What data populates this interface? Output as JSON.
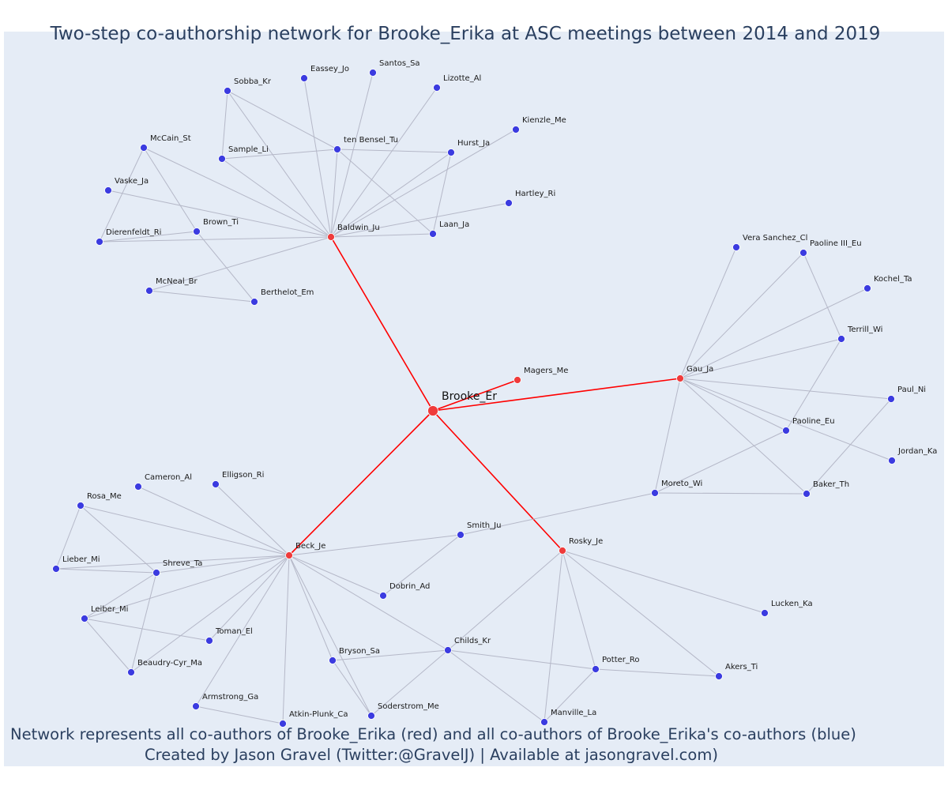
{
  "title": "Two-step co-authorship network for Brooke_Erika at ASC meetings between 2014 and 2019",
  "footer": {
    "line1": "Network represents all co-authors of Brooke_Erika (red) and all co-authors of Brooke_Erika's co-authors (blue)",
    "line2": "Created by Jason Gravel (Twitter:@GravelJ) | Available at jasongravel.com)"
  },
  "colors": {
    "background": "#e5ecf6",
    "text": "#2a3f5f",
    "first_degree": "#ef3b3b",
    "second_degree": "#3b3be0",
    "first_degree_edge": "#ff0000",
    "second_degree_edge": "#b5b8c8"
  },
  "center_node": "Brooke_Er",
  "nodes": [
    {
      "id": "Brooke_Er",
      "type": "center"
    },
    {
      "id": "Baldwin_Ju",
      "type": "first"
    },
    {
      "id": "Magers_Me",
      "type": "first"
    },
    {
      "id": "Gau_Ja",
      "type": "first"
    },
    {
      "id": "Beck_Je",
      "type": "first"
    },
    {
      "id": "Rosky_Je",
      "type": "first"
    },
    {
      "id": "Sobba_Kr",
      "type": "second"
    },
    {
      "id": "Eassey_Jo",
      "type": "second"
    },
    {
      "id": "Santos_Sa",
      "type": "second"
    },
    {
      "id": "Lizotte_Al",
      "type": "second"
    },
    {
      "id": "Kienzle_Me",
      "type": "second"
    },
    {
      "id": "McCain_St",
      "type": "second"
    },
    {
      "id": "ten Bensel_Tu",
      "type": "second"
    },
    {
      "id": "Hurst_Ja",
      "type": "second"
    },
    {
      "id": "Sample_Li",
      "type": "second"
    },
    {
      "id": "Vaske_Ja",
      "type": "second"
    },
    {
      "id": "Hartley_Ri",
      "type": "second"
    },
    {
      "id": "Brown_Ti",
      "type": "second"
    },
    {
      "id": "Dierenfeldt_Ri",
      "type": "second"
    },
    {
      "id": "Laan_Ja",
      "type": "second"
    },
    {
      "id": "McNeal_Br",
      "type": "second"
    },
    {
      "id": "Berthelot_Em",
      "type": "second"
    },
    {
      "id": "Vera Sanchez_Cl",
      "type": "second"
    },
    {
      "id": "Paoline III_Eu",
      "type": "second"
    },
    {
      "id": "Kochel_Ta",
      "type": "second"
    },
    {
      "id": "Terrill_Wi",
      "type": "second"
    },
    {
      "id": "Paul_Ni",
      "type": "second"
    },
    {
      "id": "Paoline_Eu",
      "type": "second"
    },
    {
      "id": "Jordan_Ka",
      "type": "second"
    },
    {
      "id": "Moreto_Wi",
      "type": "second"
    },
    {
      "id": "Baker_Th",
      "type": "second"
    },
    {
      "id": "Cameron_Al",
      "type": "second"
    },
    {
      "id": "Elligson_Ri",
      "type": "second"
    },
    {
      "id": "Rosa_Me",
      "type": "second"
    },
    {
      "id": "Smith_Ju",
      "type": "second"
    },
    {
      "id": "Lieber_Mi",
      "type": "second"
    },
    {
      "id": "Shreve_Ta",
      "type": "second"
    },
    {
      "id": "Dobrin_Ad",
      "type": "second"
    },
    {
      "id": "Lucken_Ka",
      "type": "second"
    },
    {
      "id": "Leiber_Mi",
      "type": "second"
    },
    {
      "id": "Toman_El",
      "type": "second"
    },
    {
      "id": "Childs_Kr",
      "type": "second"
    },
    {
      "id": "Bryson_Sa",
      "type": "second"
    },
    {
      "id": "Potter_Ro",
      "type": "second"
    },
    {
      "id": "Akers_Ti",
      "type": "second"
    },
    {
      "id": "Beaudry-Cyr_Ma",
      "type": "second"
    },
    {
      "id": "Armstrong_Ga",
      "type": "second"
    },
    {
      "id": "Soderstrom_Me",
      "type": "second"
    },
    {
      "id": "Manville_La",
      "type": "second"
    },
    {
      "id": "Atkin-Plunk_Ca",
      "type": "second"
    }
  ],
  "edges": [
    [
      "Brooke_Er",
      "Baldwin_Ju"
    ],
    [
      "Brooke_Er",
      "Magers_Me"
    ],
    [
      "Brooke_Er",
      "Gau_Ja"
    ],
    [
      "Brooke_Er",
      "Beck_Je"
    ],
    [
      "Brooke_Er",
      "Rosky_Je"
    ],
    [
      "Baldwin_Ju",
      "Sobba_Kr"
    ],
    [
      "Baldwin_Ju",
      "Eassey_Jo"
    ],
    [
      "Baldwin_Ju",
      "Santos_Sa"
    ],
    [
      "Baldwin_Ju",
      "Lizotte_Al"
    ],
    [
      "Baldwin_Ju",
      "Kienzle_Me"
    ],
    [
      "Baldwin_Ju",
      "McCain_St"
    ],
    [
      "Baldwin_Ju",
      "ten Bensel_Tu"
    ],
    [
      "Baldwin_Ju",
      "Hurst_Ja"
    ],
    [
      "Baldwin_Ju",
      "Sample_Li"
    ],
    [
      "Baldwin_Ju",
      "Vaske_Ja"
    ],
    [
      "Baldwin_Ju",
      "Hartley_Ri"
    ],
    [
      "Baldwin_Ju",
      "Dierenfeldt_Ri"
    ],
    [
      "Baldwin_Ju",
      "Laan_Ja"
    ],
    [
      "Baldwin_Ju",
      "McNeal_Br"
    ],
    [
      "Sobba_Kr",
      "ten Bensel_Tu"
    ],
    [
      "Sobba_Kr",
      "Sample_Li"
    ],
    [
      "Sample_Li",
      "ten Bensel_Tu"
    ],
    [
      "ten Bensel_Tu",
      "Hurst_Ja"
    ],
    [
      "ten Bensel_Tu",
      "Laan_Ja"
    ],
    [
      "Hurst_Ja",
      "Laan_Ja"
    ],
    [
      "McCain_St",
      "Brown_Ti"
    ],
    [
      "McCain_St",
      "Dierenfeldt_Ri"
    ],
    [
      "Brown_Ti",
      "Dierenfeldt_Ri"
    ],
    [
      "Brown_Ti",
      "Berthelot_Em"
    ],
    [
      "McNeal_Br",
      "Berthelot_Em"
    ],
    [
      "Gau_Ja",
      "Vera Sanchez_Cl"
    ],
    [
      "Gau_Ja",
      "Paoline III_Eu"
    ],
    [
      "Gau_Ja",
      "Kochel_Ta"
    ],
    [
      "Gau_Ja",
      "Terrill_Wi"
    ],
    [
      "Gau_Ja",
      "Paul_Ni"
    ],
    [
      "Gau_Ja",
      "Paoline_Eu"
    ],
    [
      "Gau_Ja",
      "Jordan_Ka"
    ],
    [
      "Gau_Ja",
      "Moreto_Wi"
    ],
    [
      "Gau_Ja",
      "Baker_Th"
    ],
    [
      "Paoline III_Eu",
      "Terrill_Wi"
    ],
    [
      "Terrill_Wi",
      "Paoline_Eu"
    ],
    [
      "Paul_Ni",
      "Baker_Th"
    ],
    [
      "Paoline_Eu",
      "Moreto_Wi"
    ],
    [
      "Moreto_Wi",
      "Baker_Th"
    ],
    [
      "Moreto_Wi",
      "Smith_Ju"
    ],
    [
      "Beck_Je",
      "Cameron_Al"
    ],
    [
      "Beck_Je",
      "Elligson_Ri"
    ],
    [
      "Beck_Je",
      "Rosa_Me"
    ],
    [
      "Beck_Je",
      "Smith_Ju"
    ],
    [
      "Beck_Je",
      "Lieber_Mi"
    ],
    [
      "Beck_Je",
      "Shreve_Ta"
    ],
    [
      "Beck_Je",
      "Dobrin_Ad"
    ],
    [
      "Beck_Je",
      "Leiber_Mi"
    ],
    [
      "Beck_Je",
      "Toman_El"
    ],
    [
      "Beck_Je",
      "Childs_Kr"
    ],
    [
      "Beck_Je",
      "Bryson_Sa"
    ],
    [
      "Beck_Je",
      "Beaudry-Cyr_Ma"
    ],
    [
      "Beck_Je",
      "Armstrong_Ga"
    ],
    [
      "Beck_Je",
      "Soderstrom_Me"
    ],
    [
      "Beck_Je",
      "Atkin-Plunk_Ca"
    ],
    [
      "Rosa_Me",
      "Lieber_Mi"
    ],
    [
      "Rosa_Me",
      "Shreve_Ta"
    ],
    [
      "Lieber_Mi",
      "Shreve_Ta"
    ],
    [
      "Shreve_Ta",
      "Leiber_Mi"
    ],
    [
      "Shreve_Ta",
      "Beaudry-Cyr_Ma"
    ],
    [
      "Leiber_Mi",
      "Toman_El"
    ],
    [
      "Leiber_Mi",
      "Beaudry-Cyr_Ma"
    ],
    [
      "Smith_Ju",
      "Dobrin_Ad"
    ],
    [
      "Armstrong_Ga",
      "Atkin-Plunk_Ca"
    ],
    [
      "Bryson_Sa",
      "Childs_Kr"
    ],
    [
      "Bryson_Sa",
      "Soderstrom_Me"
    ],
    [
      "Childs_Kr",
      "Soderstrom_Me"
    ],
    [
      "Childs_Kr",
      "Manville_La"
    ],
    [
      "Childs_Kr",
      "Potter_Ro"
    ],
    [
      "Rosky_Je",
      "Lucken_Ka"
    ],
    [
      "Rosky_Je",
      "Childs_Kr"
    ],
    [
      "Rosky_Je",
      "Potter_Ro"
    ],
    [
      "Rosky_Je",
      "Akers_Ti"
    ],
    [
      "Rosky_Je",
      "Manville_La"
    ],
    [
      "Potter_Ro",
      "Akers_Ti"
    ],
    [
      "Potter_Ro",
      "Manville_La"
    ]
  ]
}
